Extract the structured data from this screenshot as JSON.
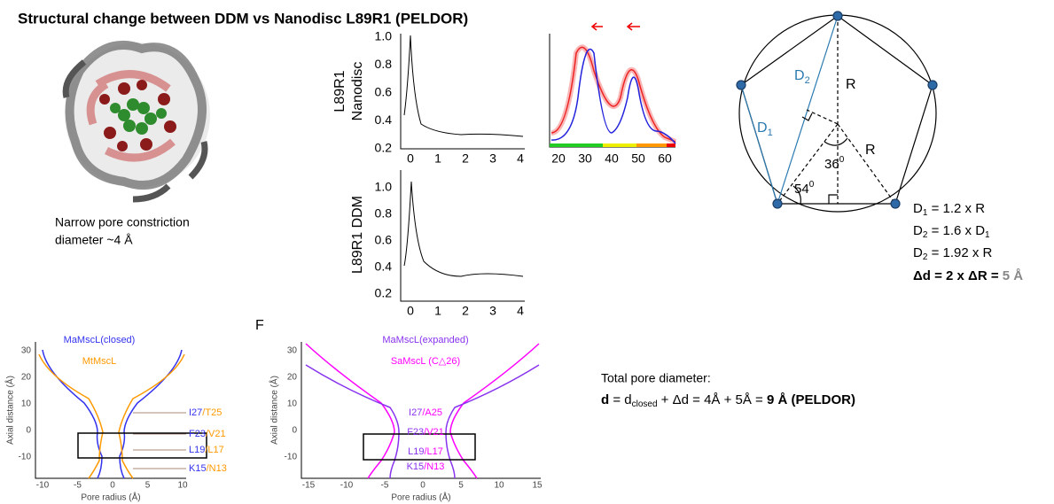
{
  "title": "Structural change between DDM vs Nanodisc L89R1 (PELDOR)",
  "caption": [
    "Narrow pore constriction",
    "diameter ~4 Å"
  ],
  "peldor": {
    "top_label": [
      "L89R1",
      "Nanodisc"
    ],
    "bottom_label": "L89R1 DDM",
    "yticks": [
      "1.0",
      "0.8",
      "0.6",
      "0.4",
      "0.2"
    ],
    "xticks": [
      "0",
      "1",
      "2",
      "3",
      "4"
    ],
    "dist_xticks": [
      "20",
      "30",
      "40",
      "50",
      "60"
    ]
  },
  "geometry": {
    "d2": [
      "D",
      "2"
    ],
    "d1": [
      "D",
      "1"
    ],
    "r1": "R",
    "r2": "R",
    "angle36": [
      "36",
      "0"
    ],
    "angle54": [
      "54",
      "0"
    ],
    "equations": [
      [
        "D",
        "1",
        " = 1.2 x R"
      ],
      [
        "D",
        "2",
        " = 1.6 x D",
        "1"
      ],
      [
        "D",
        "2",
        " = 1.92 x R"
      ]
    ],
    "delta": [
      "Δd = 2 x ΔR = ",
      "5 Å"
    ]
  },
  "total": {
    "heading": "Total pore diameter:",
    "formula": [
      "d",
      " = d",
      "closed",
      " + Δd = 4Å + 5Å = ",
      " 9 Å (PELDOR)"
    ]
  },
  "panel_e": {
    "legend": [
      "MaMscL(closed)",
      "MtMscL"
    ],
    "residues": [
      [
        "I27",
        "/T25"
      ],
      [
        "F23",
        "/V21"
      ],
      [
        "L19",
        "/L17"
      ],
      [
        "K15",
        "/N13"
      ]
    ],
    "ylabel": "Axial distance (Å)",
    "xlabel": "Pore radius (Å)",
    "yticks": [
      "30",
      "20",
      "10",
      "0",
      "-10"
    ],
    "xticks": [
      "-10",
      "-5",
      "0",
      "5",
      "10"
    ]
  },
  "panel_f": {
    "letter": "F",
    "legend": [
      "MaMscL(expanded)",
      "SaMscL (C△26)"
    ],
    "residues": [
      [
        "I27",
        "/A25"
      ],
      [
        "F23",
        "/V21"
      ],
      [
        "L19",
        "/L17"
      ],
      [
        "K15",
        "/N13"
      ]
    ],
    "ylabel": "Axial distance (Å)",
    "xlabel": "Pore radius (Å)",
    "yticks": [
      "30",
      "20",
      "10",
      "0",
      "-10"
    ],
    "xticks": [
      "-15",
      "-10",
      "-5",
      "0",
      "5",
      "10",
      "15"
    ]
  }
}
